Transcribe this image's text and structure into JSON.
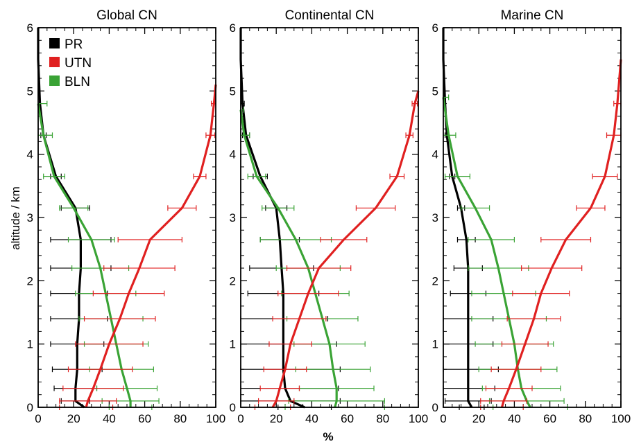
{
  "figure": {
    "ylabel": "altitude / km",
    "xlabel": "%",
    "legend": [
      {
        "name": "PR",
        "color": "#000000"
      },
      {
        "name": "UTN",
        "color": "#e02020"
      },
      {
        "name": "BLN",
        "color": "#3aa335"
      }
    ]
  },
  "chart_data": [
    {
      "type": "line",
      "title": "Global CN",
      "xlim": [
        0,
        100
      ],
      "ylim": [
        0,
        6
      ],
      "xticks": [
        "0",
        "20",
        "40",
        "60",
        "80",
        "100"
      ],
      "yticks": [
        "0",
        "1",
        "2",
        "3",
        "4",
        "5",
        "6"
      ],
      "series": [
        {
          "name": "PR",
          "color": "#000000",
          "y": [
            0.0,
            0.1,
            0.3,
            0.6,
            1.0,
            1.4,
            1.8,
            2.2,
            2.65,
            3.15,
            3.65,
            4.3,
            4.8,
            5.5,
            6.0
          ],
          "x": [
            26,
            21,
            21,
            22,
            22,
            23,
            23,
            24,
            24,
            21,
            10,
            3,
            1,
            0,
            0
          ],
          "err": [
            0,
            8,
            12,
            14,
            15,
            16,
            16,
            17,
            17,
            8,
            3,
            1.5,
            0.5,
            0,
            0
          ]
        },
        {
          "name": "UTN",
          "color": "#e02020",
          "y": [
            0.0,
            0.1,
            0.3,
            0.6,
            1.0,
            1.4,
            1.8,
            2.2,
            2.65,
            3.15,
            3.65,
            4.3,
            4.8,
            5.1
          ],
          "x": [
            27,
            28,
            31,
            35,
            40,
            46,
            51,
            57,
            63,
            81,
            91,
            97,
            99,
            100
          ],
          "err": [
            15,
            16,
            17,
            18,
            19,
            20,
            20,
            20,
            18,
            8,
            3.5,
            2.5,
            1.5,
            0
          ]
        },
        {
          "name": "BLN",
          "color": "#3aa335",
          "y": [
            0.0,
            0.1,
            0.3,
            0.6,
            1.0,
            1.4,
            1.8,
            2.2,
            2.65,
            3.15,
            3.65,
            4.3,
            4.8
          ],
          "x": [
            52,
            52,
            50,
            47,
            44,
            41,
            38,
            35,
            30,
            20,
            9,
            3,
            0
          ],
          "err": [
            12,
            16,
            17,
            18,
            18,
            18,
            17,
            16,
            13,
            8,
            6,
            5,
            5
          ]
        }
      ]
    },
    {
      "type": "line",
      "title": "Continental CN",
      "xlim": [
        0,
        100
      ],
      "ylim": [
        0,
        6
      ],
      "xticks": [
        "0",
        "20",
        "40",
        "60",
        "80",
        "100"
      ],
      "yticks": [
        "0",
        "1",
        "2",
        "3",
        "4",
        "5",
        "6"
      ],
      "series": [
        {
          "name": "PR",
          "color": "#000000",
          "y": [
            0.0,
            0.1,
            0.3,
            0.6,
            1.0,
            1.4,
            1.8,
            2.2,
            2.65,
            3.15,
            3.65,
            4.3,
            4.8,
            5.5,
            6.0
          ],
          "x": [
            36,
            28,
            25,
            24,
            24,
            24,
            24,
            23,
            22,
            20,
            11,
            3,
            1,
            0,
            0
          ],
          "err": [
            15,
            28,
            30,
            32,
            30,
            25,
            20,
            18,
            11,
            6,
            4,
            2,
            1,
            0,
            0
          ]
        },
        {
          "name": "UTN",
          "color": "#e02020",
          "y": [
            0.0,
            0.1,
            0.3,
            0.6,
            1.0,
            1.4,
            1.8,
            2.2,
            2.65,
            3.15,
            3.65,
            4.3,
            4.8,
            5.0
          ],
          "x": [
            18,
            20,
            22,
            25,
            28,
            33,
            38,
            44,
            58,
            76,
            88,
            95,
            98,
            100
          ],
          "err": [
            10,
            10,
            11,
            12,
            12,
            15,
            17,
            18,
            13,
            11,
            4,
            2,
            1.5,
            0
          ]
        },
        {
          "name": "BLN",
          "color": "#3aa335",
          "y": [
            0.0,
            0.1,
            0.3,
            0.6,
            1.0,
            1.4,
            1.8,
            2.2,
            2.65,
            3.15,
            3.65,
            4.3,
            4.7
          ],
          "x": [
            53,
            54,
            54,
            52,
            50,
            46,
            42,
            38,
            31,
            21,
            9,
            2,
            0
          ],
          "err": [
            28,
            27,
            21,
            21,
            20,
            20,
            19,
            18,
            20,
            9,
            5,
            3,
            1.5
          ]
        }
      ]
    },
    {
      "type": "line",
      "title": "Marine CN",
      "xlim": [
        0,
        100
      ],
      "ylim": [
        0,
        6
      ],
      "xticks": [
        "0",
        "20",
        "40",
        "60",
        "80",
        "100"
      ],
      "yticks": [
        "0",
        "1",
        "2",
        "3",
        "4",
        "5",
        "6"
      ],
      "series": [
        {
          "name": "PR",
          "color": "#000000",
          "y": [
            0.0,
            0.1,
            0.3,
            0.6,
            1.0,
            1.4,
            1.8,
            2.2,
            2.65,
            3.15,
            3.65,
            4.3,
            4.8,
            5.5,
            6.0
          ],
          "x": [
            16,
            14,
            14,
            14,
            14,
            14,
            14,
            14,
            13,
            10,
            5,
            2,
            1,
            0,
            0
          ],
          "err": [
            7,
            13,
            15,
            17,
            14,
            14,
            10,
            8,
            5,
            2,
            1.5,
            1,
            0.5,
            0,
            0
          ]
        },
        {
          "name": "UTN",
          "color": "#e02020",
          "y": [
            0.0,
            0.1,
            0.3,
            0.6,
            1.0,
            1.4,
            1.8,
            2.2,
            2.65,
            3.15,
            3.65,
            4.3,
            4.8,
            5.5
          ],
          "x": [
            33,
            34,
            37,
            41,
            46,
            51,
            55,
            61,
            69,
            83,
            91,
            96,
            98,
            100
          ],
          "err": [
            12,
            13,
            13,
            14,
            13,
            15,
            16,
            17,
            14,
            8,
            7,
            4,
            2,
            0
          ]
        },
        {
          "name": "BLN",
          "color": "#3aa335",
          "y": [
            0.0,
            0.1,
            0.3,
            0.6,
            1.0,
            1.4,
            1.8,
            2.2,
            2.65,
            3.15,
            3.65,
            4.3,
            4.9
          ],
          "x": [
            49,
            47,
            44,
            42,
            40,
            37,
            34,
            31,
            27,
            18,
            8,
            3,
            0
          ],
          "err": [
            21,
            21,
            22,
            22,
            22,
            21,
            18,
            17,
            13,
            8,
            7,
            4,
            3
          ]
        }
      ]
    }
  ]
}
